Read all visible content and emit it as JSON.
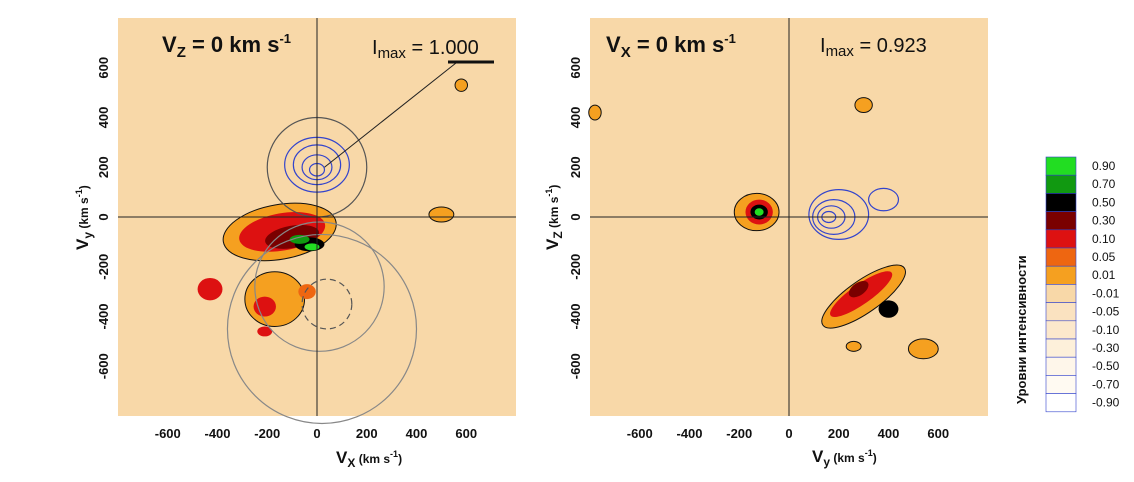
{
  "chart_data": [
    {
      "type": "heatmap",
      "title_main": "V",
      "title_sub": "Z",
      "title_rest": " = 0 km s",
      "title_sup": "-1",
      "imax_label": "I",
      "imax_sub": "max",
      "imax_value": " = 1.000",
      "xlabel_main": "V",
      "xlabel_sub": "X",
      "xlabel_unit": " (km s",
      "xlabel_sup": "-1",
      "xlabel_close": ")",
      "ylabel_main": "V",
      "ylabel_sub": "y",
      "ylabel_unit": " (km s",
      "ylabel_sup": "-1",
      "ylabel_close": ")",
      "xlim": [
        -800,
        800
      ],
      "ylim": [
        -800,
        800
      ],
      "xticks": [
        -600,
        -400,
        -200,
        0,
        200,
        400,
        600
      ],
      "yticks": [
        600,
        400,
        200,
        0,
        -200,
        -400,
        -600
      ],
      "xtick_labels": [
        "-600",
        "-400",
        "-200",
        "0",
        "200",
        "400",
        "600"
      ],
      "ytick_labels": [
        "600",
        "400",
        "200",
        "0",
        "-200",
        "-400",
        "-600"
      ],
      "blobs": [
        {
          "x": -150,
          "y": -60,
          "rx": 230,
          "ry": 110,
          "rot": 10,
          "level": 0.01
        },
        {
          "x": -140,
          "y": -60,
          "rx": 175,
          "ry": 75,
          "rot": 10,
          "level": 0.1
        },
        {
          "x": -100,
          "y": -80,
          "rx": 110,
          "ry": 45,
          "rot": 10,
          "level": 0.3
        },
        {
          "x": -30,
          "y": -110,
          "rx": 60,
          "ry": 28,
          "rot": 0,
          "level": 0.5
        },
        {
          "x": -70,
          "y": -90,
          "rx": 40,
          "ry": 18,
          "rot": 0,
          "level": 0.7
        },
        {
          "x": -20,
          "y": -120,
          "rx": 30,
          "ry": 14,
          "rot": 0,
          "level": 0.9
        },
        {
          "x": -170,
          "y": -330,
          "rx": 120,
          "ry": 110,
          "rot": 0,
          "level": 0.01
        },
        {
          "x": -430,
          "y": -290,
          "rx": 50,
          "ry": 45,
          "rot": 0,
          "level": 0.1
        },
        {
          "x": -210,
          "y": -360,
          "rx": 45,
          "ry": 40,
          "rot": 0,
          "level": 0.1
        },
        {
          "x": -210,
          "y": -460,
          "rx": 30,
          "ry": 20,
          "rot": 0,
          "level": 0.1
        },
        {
          "x": -40,
          "y": -300,
          "rx": 35,
          "ry": 30,
          "rot": 0,
          "level": 0.05
        },
        {
          "x": 500,
          "y": 10,
          "rx": 50,
          "ry": 30,
          "rot": 0,
          "level": 0.01
        },
        {
          "x": 580,
          "y": 530,
          "rx": 25,
          "ry": 25,
          "rot": 0,
          "level": 0.01
        }
      ],
      "contours": [
        {
          "x": 0,
          "y": 210,
          "rx": 130,
          "ry": 110,
          "color": "#3344cc"
        },
        {
          "x": 0,
          "y": 210,
          "rx": 95,
          "ry": 80,
          "color": "#3344cc"
        },
        {
          "x": 0,
          "y": 200,
          "rx": 60,
          "ry": 50,
          "color": "#3344cc"
        },
        {
          "x": 0,
          "y": 190,
          "rx": 30,
          "ry": 25,
          "color": "#3344cc"
        },
        {
          "x": 0,
          "y": 200,
          "rx": 200,
          "ry": 200,
          "color": "#555555"
        },
        {
          "x": 20,
          "y": -450,
          "rx": 380,
          "ry": 380,
          "color": "#888888"
        },
        {
          "x": 10,
          "y": -280,
          "rx": 260,
          "ry": 260,
          "color": "#888888"
        },
        {
          "x": 40,
          "y": -350,
          "rx": 100,
          "ry": 100,
          "color": "#555555",
          "dashed": true
        }
      ],
      "pointer_line": {
        "from": [
          30,
          200
        ],
        "to": [
          560,
          620
        ]
      }
    },
    {
      "type": "heatmap",
      "title_main": "V",
      "title_sub": "X",
      "title_rest": " = 0 km s",
      "title_sup": "-1",
      "imax_label": "I",
      "imax_sub": "max",
      "imax_value": " = 0.923",
      "xlabel_main": "V",
      "xlabel_sub": "y",
      "xlabel_unit": " (km s",
      "xlabel_sup": "-1",
      "xlabel_close": ")",
      "ylabel_main": "V",
      "ylabel_sub": "Z",
      "ylabel_unit": " (km s",
      "ylabel_sup": "-1",
      "ylabel_close": ")",
      "xlim": [
        -800,
        800
      ],
      "ylim": [
        -800,
        800
      ],
      "xticks": [
        -600,
        -400,
        -200,
        0,
        200,
        400,
        600
      ],
      "yticks": [
        600,
        400,
        200,
        0,
        -200,
        -400,
        -600
      ],
      "xtick_labels": [
        "-600",
        "-400",
        "-200",
        "0",
        "200",
        "400",
        "600"
      ],
      "ytick_labels": [
        "600",
        "400",
        "200",
        "0",
        "-200",
        "-400",
        "-600"
      ],
      "blobs": [
        {
          "x": -130,
          "y": 20,
          "rx": 90,
          "ry": 75,
          "rot": 0,
          "level": 0.01
        },
        {
          "x": -120,
          "y": 20,
          "rx": 55,
          "ry": 50,
          "rot": 0,
          "level": 0.1
        },
        {
          "x": -120,
          "y": 20,
          "rx": 35,
          "ry": 30,
          "rot": 0,
          "level": 0.5
        },
        {
          "x": -120,
          "y": 20,
          "rx": 18,
          "ry": 15,
          "rot": 0,
          "level": 0.9
        },
        {
          "x": 300,
          "y": -320,
          "rx": 200,
          "ry": 65,
          "rot": 35,
          "level": 0.01
        },
        {
          "x": 290,
          "y": -310,
          "rx": 150,
          "ry": 40,
          "rot": 35,
          "level": 0.1
        },
        {
          "x": 400,
          "y": -370,
          "rx": 40,
          "ry": 35,
          "rot": 0,
          "level": 0.5
        },
        {
          "x": 280,
          "y": -290,
          "rx": 45,
          "ry": 25,
          "rot": 35,
          "level": 0.3
        },
        {
          "x": 540,
          "y": -530,
          "rx": 60,
          "ry": 40,
          "rot": 0,
          "level": 0.01
        },
        {
          "x": 260,
          "y": -520,
          "rx": 30,
          "ry": 20,
          "rot": 0,
          "level": 0.01
        },
        {
          "x": 300,
          "y": 450,
          "rx": 35,
          "ry": 30,
          "rot": 0,
          "level": 0.01
        },
        {
          "x": -780,
          "y": 420,
          "rx": 25,
          "ry": 30,
          "rot": 0,
          "level": 0.01
        }
      ],
      "contours": [
        {
          "x": 200,
          "y": 10,
          "rx": 120,
          "ry": 100,
          "color": "#3344cc"
        },
        {
          "x": 180,
          "y": 0,
          "rx": 85,
          "ry": 70,
          "color": "#3344cc"
        },
        {
          "x": 170,
          "y": 0,
          "rx": 55,
          "ry": 45,
          "color": "#3344cc"
        },
        {
          "x": 160,
          "y": 0,
          "rx": 28,
          "ry": 22,
          "color": "#3344cc"
        },
        {
          "x": 380,
          "y": 70,
          "rx": 60,
          "ry": 45,
          "color": "#3344cc"
        }
      ]
    }
  ],
  "legend": {
    "title": "Уровни интенсивности",
    "levels": [
      {
        "label": "0.90",
        "color": "#22dd22"
      },
      {
        "label": "0.70",
        "color": "#119911"
      },
      {
        "label": "0.50",
        "color": "#000000"
      },
      {
        "label": "0.30",
        "color": "#7a0000"
      },
      {
        "label": "0.10",
        "color": "#dd1111"
      },
      {
        "label": "0.05",
        "color": "#ee6611"
      },
      {
        "label": "0.01",
        "color": "#f5a020"
      },
      {
        "label": "-0.01",
        "color": "#f8d8a8"
      },
      {
        "label": "-0.05",
        "color": "#fae2c0"
      },
      {
        "label": "-0.10",
        "color": "#fce8cc"
      },
      {
        "label": "-0.30",
        "color": "#fdf0da"
      },
      {
        "label": "-0.50",
        "color": "#fef6ea"
      },
      {
        "label": "-0.70",
        "color": "#fffaf2"
      },
      {
        "label": "-0.90",
        "color": "#ffffff"
      }
    ]
  },
  "colors": {
    "background": "#f8d8a8",
    "axis_line": "#222222",
    "contour_black": "#111111"
  },
  "level_colors": {
    "0.01": "#f5a020",
    "0.05": "#ee6611",
    "0.1": "#dd1111",
    "0.3": "#7a0000",
    "0.5": "#000000",
    "0.7": "#119911",
    "0.9": "#22dd22"
  }
}
